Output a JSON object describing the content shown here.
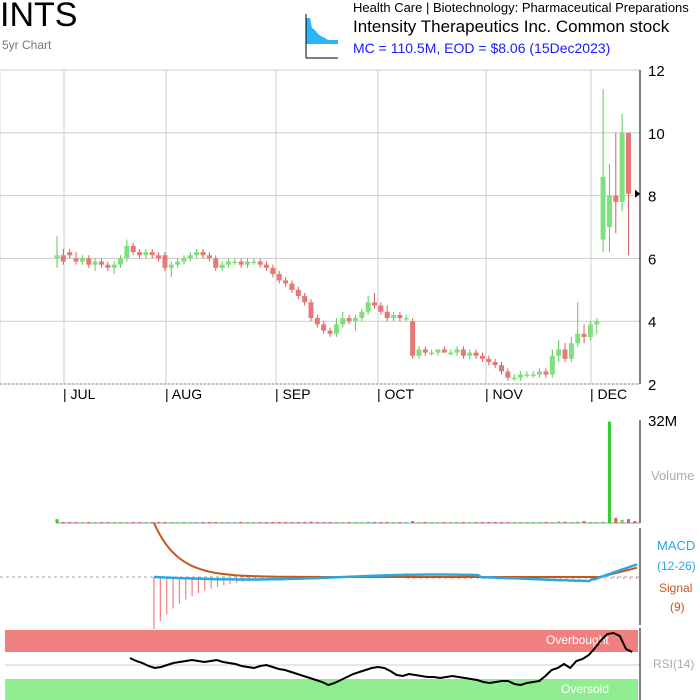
{
  "header": {
    "ticker": "INTS",
    "period_label": "5yr Chart",
    "sector": "Health Care | Biotechnology: Pharmaceutical Preparations",
    "company": "Intensity Therapeutics Inc. Common stock",
    "summary": "MC = 110.5M, EOD = $8.06 (15Dec2023)"
  },
  "chart_data": [
    {
      "type": "candlestick",
      "ylim": [
        2,
        12
      ],
      "yticks": [
        "2",
        "4",
        "6",
        "8",
        "10",
        "12"
      ],
      "month_labels": [
        "| JUL",
        "| AUG",
        "| SEP",
        "| OCT",
        "| NOV",
        "| DEC"
      ],
      "candles": [
        {
          "o": 6.0,
          "h": 6.7,
          "l": 5.7,
          "c": 6.1
        },
        {
          "o": 6.1,
          "h": 6.3,
          "l": 5.8,
          "c": 5.9
        },
        {
          "o": 6.2,
          "h": 6.3,
          "l": 6.0,
          "c": 6.1
        },
        {
          "o": 6.0,
          "h": 6.2,
          "l": 5.8,
          "c": 5.9
        },
        {
          "o": 5.9,
          "h": 6.1,
          "l": 5.8,
          "c": 6.0
        },
        {
          "o": 6.0,
          "h": 6.1,
          "l": 5.7,
          "c": 5.8
        },
        {
          "o": 5.8,
          "h": 6.0,
          "l": 5.6,
          "c": 5.9
        },
        {
          "o": 5.9,
          "h": 6.0,
          "l": 5.7,
          "c": 5.8
        },
        {
          "o": 5.8,
          "h": 5.9,
          "l": 5.6,
          "c": 5.7
        },
        {
          "o": 5.7,
          "h": 5.9,
          "l": 5.5,
          "c": 5.8
        },
        {
          "o": 5.8,
          "h": 6.1,
          "l": 5.7,
          "c": 6.0
        },
        {
          "o": 6.0,
          "h": 6.6,
          "l": 5.9,
          "c": 6.4
        },
        {
          "o": 6.4,
          "h": 6.5,
          "l": 6.1,
          "c": 6.2
        },
        {
          "o": 6.2,
          "h": 6.3,
          "l": 6.0,
          "c": 6.1
        },
        {
          "o": 6.1,
          "h": 6.3,
          "l": 6.0,
          "c": 6.2
        },
        {
          "o": 6.2,
          "h": 6.3,
          "l": 6.0,
          "c": 6.1
        },
        {
          "o": 6.1,
          "h": 6.2,
          "l": 5.9,
          "c": 6.0
        },
        {
          "o": 6.1,
          "h": 6.2,
          "l": 5.6,
          "c": 5.7
        },
        {
          "o": 5.7,
          "h": 5.9,
          "l": 5.4,
          "c": 5.8
        },
        {
          "o": 5.8,
          "h": 6.0,
          "l": 5.7,
          "c": 5.9
        },
        {
          "o": 5.9,
          "h": 6.1,
          "l": 5.8,
          "c": 6.0
        },
        {
          "o": 6.0,
          "h": 6.2,
          "l": 5.9,
          "c": 6.1
        },
        {
          "o": 6.1,
          "h": 6.3,
          "l": 6.0,
          "c": 6.2
        },
        {
          "o": 6.2,
          "h": 6.3,
          "l": 6.0,
          "c": 6.1
        },
        {
          "o": 6.1,
          "h": 6.2,
          "l": 5.9,
          "c": 6.0
        },
        {
          "o": 6.0,
          "h": 6.1,
          "l": 5.6,
          "c": 5.7
        },
        {
          "o": 5.7,
          "h": 5.9,
          "l": 5.6,
          "c": 5.8
        },
        {
          "o": 5.8,
          "h": 6.0,
          "l": 5.7,
          "c": 5.9
        },
        {
          "o": 5.9,
          "h": 6.0,
          "l": 5.8,
          "c": 5.9
        },
        {
          "o": 5.9,
          "h": 6.0,
          "l": 5.7,
          "c": 5.8
        },
        {
          "o": 5.8,
          "h": 6.0,
          "l": 5.7,
          "c": 5.9
        },
        {
          "o": 5.9,
          "h": 6.0,
          "l": 5.8,
          "c": 5.9
        },
        {
          "o": 5.9,
          "h": 6.0,
          "l": 5.7,
          "c": 5.8
        },
        {
          "o": 5.8,
          "h": 5.9,
          "l": 5.6,
          "c": 5.7
        },
        {
          "o": 5.7,
          "h": 5.8,
          "l": 5.4,
          "c": 5.5
        },
        {
          "o": 5.5,
          "h": 5.6,
          "l": 5.2,
          "c": 5.3
        },
        {
          "o": 5.3,
          "h": 5.4,
          "l": 5.1,
          "c": 5.2
        },
        {
          "o": 5.2,
          "h": 5.3,
          "l": 4.9,
          "c": 5.0
        },
        {
          "o": 5.0,
          "h": 5.1,
          "l": 4.7,
          "c": 4.8
        },
        {
          "o": 4.8,
          "h": 4.9,
          "l": 4.5,
          "c": 4.6
        },
        {
          "o": 4.6,
          "h": 4.7,
          "l": 4.0,
          "c": 4.1
        },
        {
          "o": 4.1,
          "h": 4.2,
          "l": 3.8,
          "c": 3.9
        },
        {
          "o": 3.9,
          "h": 4.0,
          "l": 3.6,
          "c": 3.7
        },
        {
          "o": 3.7,
          "h": 3.8,
          "l": 3.5,
          "c": 3.6
        },
        {
          "o": 3.6,
          "h": 4.1,
          "l": 3.5,
          "c": 3.9
        },
        {
          "o": 3.9,
          "h": 4.3,
          "l": 3.8,
          "c": 4.1
        },
        {
          "o": 4.1,
          "h": 4.2,
          "l": 3.9,
          "c": 4.0
        },
        {
          "o": 4.0,
          "h": 4.2,
          "l": 3.7,
          "c": 4.1
        },
        {
          "o": 4.1,
          "h": 4.4,
          "l": 4.0,
          "c": 4.3
        },
        {
          "o": 4.3,
          "h": 4.8,
          "l": 4.2,
          "c": 4.6
        },
        {
          "o": 4.6,
          "h": 4.9,
          "l": 4.4,
          "c": 4.5
        },
        {
          "o": 4.5,
          "h": 4.6,
          "l": 4.2,
          "c": 4.3
        },
        {
          "o": 4.3,
          "h": 4.5,
          "l": 4.0,
          "c": 4.1
        },
        {
          "o": 4.1,
          "h": 4.3,
          "l": 4.0,
          "c": 4.2
        },
        {
          "o": 4.2,
          "h": 4.3,
          "l": 4.0,
          "c": 4.1
        },
        {
          "o": 4.1,
          "h": 4.2,
          "l": 4.0,
          "c": 4.1
        },
        {
          "o": 4.0,
          "h": 4.1,
          "l": 2.8,
          "c": 2.9
        },
        {
          "o": 2.9,
          "h": 3.2,
          "l": 2.8,
          "c": 3.1
        },
        {
          "o": 3.1,
          "h": 3.2,
          "l": 2.9,
          "c": 3.0
        },
        {
          "o": 3.0,
          "h": 3.1,
          "l": 2.9,
          "c": 3.0
        },
        {
          "o": 3.0,
          "h": 3.1,
          "l": 2.9,
          "c": 3.1
        },
        {
          "o": 3.1,
          "h": 3.2,
          "l": 3.0,
          "c": 3.0
        },
        {
          "o": 3.0,
          "h": 3.1,
          "l": 2.9,
          "c": 3.0
        },
        {
          "o": 3.0,
          "h": 3.2,
          "l": 2.9,
          "c": 3.1
        },
        {
          "o": 3.1,
          "h": 3.2,
          "l": 2.8,
          "c": 2.9
        },
        {
          "o": 2.9,
          "h": 3.1,
          "l": 2.8,
          "c": 3.0
        },
        {
          "o": 3.0,
          "h": 3.1,
          "l": 2.8,
          "c": 2.9
        },
        {
          "o": 2.9,
          "h": 3.0,
          "l": 2.7,
          "c": 2.8
        },
        {
          "o": 2.8,
          "h": 2.9,
          "l": 2.6,
          "c": 2.7
        },
        {
          "o": 2.7,
          "h": 2.8,
          "l": 2.5,
          "c": 2.6
        },
        {
          "o": 2.6,
          "h": 2.7,
          "l": 2.3,
          "c": 2.4
        },
        {
          "o": 2.4,
          "h": 2.5,
          "l": 2.1,
          "c": 2.2
        },
        {
          "o": 2.2,
          "h": 2.3,
          "l": 2.1,
          "c": 2.2
        },
        {
          "o": 2.2,
          "h": 2.4,
          "l": 2.1,
          "c": 2.3
        },
        {
          "o": 2.3,
          "h": 2.4,
          "l": 2.2,
          "c": 2.3
        },
        {
          "o": 2.3,
          "h": 2.4,
          "l": 2.2,
          "c": 2.3
        },
        {
          "o": 2.3,
          "h": 2.5,
          "l": 2.2,
          "c": 2.4
        },
        {
          "o": 2.4,
          "h": 2.5,
          "l": 2.2,
          "c": 2.3
        },
        {
          "o": 2.3,
          "h": 3.1,
          "l": 2.2,
          "c": 2.9
        },
        {
          "o": 2.9,
          "h": 3.4,
          "l": 2.7,
          "c": 3.1
        },
        {
          "o": 3.1,
          "h": 3.3,
          "l": 2.7,
          "c": 2.8
        },
        {
          "o": 2.8,
          "h": 3.5,
          "l": 2.7,
          "c": 3.3
        },
        {
          "o": 3.3,
          "h": 4.6,
          "l": 3.2,
          "c": 3.6
        },
        {
          "o": 3.6,
          "h": 3.9,
          "l": 3.3,
          "c": 3.5
        },
        {
          "o": 3.5,
          "h": 4.0,
          "l": 3.4,
          "c": 3.9
        },
        {
          "o": 3.9,
          "h": 4.1,
          "l": 3.6,
          "c": 4.0
        },
        {
          "o": 6.6,
          "h": 11.4,
          "l": 6.2,
          "c": 8.6
        },
        {
          "o": 7.0,
          "h": 9.0,
          "l": 6.2,
          "c": 8.0
        },
        {
          "o": 8.0,
          "h": 10.0,
          "l": 6.8,
          "c": 7.8
        },
        {
          "o": 7.8,
          "h": 10.6,
          "l": 7.5,
          "c": 10.0
        },
        {
          "o": 10.0,
          "h": 10.0,
          "l": 6.1,
          "c": 8.06
        }
      ]
    },
    {
      "type": "bar",
      "ylabel": "Volume",
      "ymax_label": "32M",
      "ylim": [
        0,
        32
      ],
      "values": [
        1.2,
        0.3,
        0.2,
        0.2,
        0.2,
        0.3,
        0.2,
        0.2,
        0.2,
        0.2,
        0.2,
        0.3,
        0.2,
        0.2,
        0.2,
        0.2,
        0.2,
        0.3,
        0.2,
        0.2,
        0.2,
        0.2,
        0.2,
        0.2,
        0.2,
        0.3,
        0.2,
        0.2,
        0.2,
        0.2,
        0.2,
        0.2,
        0.2,
        0.2,
        0.3,
        0.3,
        0.2,
        0.3,
        0.3,
        0.3,
        0.4,
        0.3,
        0.3,
        0.3,
        0.3,
        0.3,
        0.2,
        0.3,
        0.3,
        0.4,
        0.3,
        0.3,
        0.3,
        0.2,
        0.2,
        0.2,
        0.6,
        0.3,
        0.2,
        0.2,
        0.2,
        0.2,
        0.2,
        0.2,
        0.2,
        0.2,
        0.2,
        0.2,
        0.2,
        0.2,
        0.3,
        0.3,
        0.3,
        0.2,
        0.2,
        0.2,
        0.2,
        0.2,
        0.2,
        0.5,
        0.4,
        0.3,
        0.4,
        0.6,
        0.3,
        0.3,
        0.4,
        31.5,
        1.6,
        1.0,
        1.2,
        0.6
      ]
    },
    {
      "type": "line",
      "series": [
        {
          "name": "MACD",
          "period_label": "(12-26)",
          "color": "#29a8e0"
        },
        {
          "name": "Signal",
          "period_label": "(9)",
          "color": "#c8561a"
        }
      ]
    },
    {
      "type": "line",
      "series": [
        {
          "name": "RSI(14)",
          "color": "#000000"
        }
      ],
      "bands": [
        "Overbought",
        "Oversold"
      ]
    }
  ]
}
